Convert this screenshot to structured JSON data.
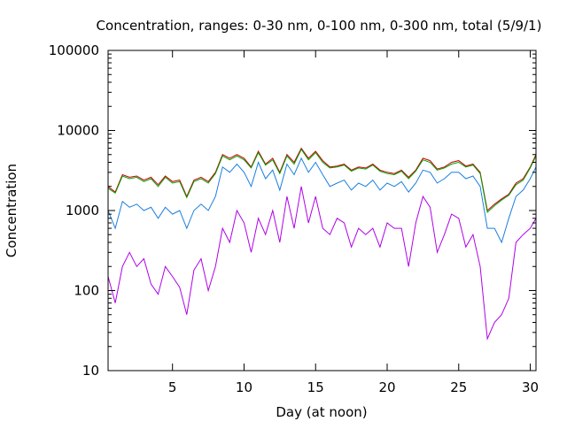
{
  "chart_data": {
    "type": "line",
    "title": "Concentration, ranges: 0-30 nm, 0-100 nm, 0-300 nm, total (5/9/1)",
    "xlabel": "Day (at noon)",
    "ylabel": "Concentration",
    "xlim": [
      0.5,
      30.4
    ],
    "ylim": [
      10,
      100000
    ],
    "yscale": "log",
    "grid": false,
    "legend": "none",
    "x_ticks": [
      5,
      10,
      15,
      20,
      25,
      30
    ],
    "x_tick_labels": [
      "5",
      "10",
      "15",
      "20",
      "25",
      "30"
    ],
    "y_ticks": [
      10,
      100,
      1000,
      10000,
      100000
    ],
    "y_tick_labels": [
      "10",
      "100",
      "1000",
      "10000",
      "100000"
    ],
    "series": [
      {
        "color": "#cc0000",
        "x": [
          0.5,
          1,
          1.5,
          2,
          2.5,
          3,
          3.5,
          4,
          4.5,
          5,
          5.5,
          6,
          6.5,
          7,
          7.5,
          8,
          8.5,
          9,
          9.5,
          10,
          10.5,
          11,
          11.5,
          12,
          12.5,
          13,
          13.5,
          14,
          14.5,
          15,
          15.5,
          16,
          16.5,
          17,
          17.5,
          18,
          18.5,
          19,
          19.5,
          20,
          20.5,
          21,
          21.5,
          22,
          22.5,
          23,
          23.5,
          24,
          24.5,
          25,
          25.5,
          26,
          26.5,
          27,
          27.5,
          28,
          28.5,
          29,
          29.5,
          30,
          30.4
        ],
        "y": [
          2000,
          1700,
          2800,
          2600,
          2700,
          2400,
          2600,
          2100,
          2700,
          2300,
          2400,
          1500,
          2400,
          2600,
          2300,
          3000,
          5000,
          4500,
          5000,
          4500,
          3500,
          5500,
          3800,
          4500,
          3000,
          5000,
          4000,
          6000,
          4500,
          5500,
          4200,
          3500,
          3600,
          3800,
          3200,
          3500,
          3400,
          3800,
          3200,
          3000,
          2900,
          3200,
          2600,
          3200,
          4500,
          4200,
          3300,
          3500,
          4000,
          4200,
          3600,
          3800,
          3000,
          1000,
          1200,
          1400,
          1600,
          2200,
          2500,
          3500,
          5000
        ]
      },
      {
        "color": "#00a000",
        "x": [
          0.5,
          1,
          1.5,
          2,
          2.5,
          3,
          3.5,
          4,
          4.5,
          5,
          5.5,
          6,
          6.5,
          7,
          7.5,
          8,
          8.5,
          9,
          9.5,
          10,
          10.5,
          11,
          11.5,
          12,
          12.5,
          13,
          13.5,
          14,
          14.5,
          15,
          15.5,
          16,
          16.5,
          17,
          17.5,
          18,
          18.5,
          19,
          19.5,
          20,
          20.5,
          21,
          21.5,
          22,
          22.5,
          23,
          23.5,
          24,
          24.5,
          25,
          25.5,
          26,
          26.5,
          27,
          27.5,
          28,
          28.5,
          29,
          29.5,
          30,
          30.4
        ],
        "y": [
          1900,
          1650,
          2700,
          2500,
          2600,
          2300,
          2500,
          2000,
          2600,
          2200,
          2300,
          1450,
          2300,
          2500,
          2200,
          2900,
          4800,
          4300,
          4800,
          4300,
          3400,
          5300,
          3700,
          4300,
          2900,
          4800,
          3800,
          5800,
          4300,
          5300,
          4000,
          3400,
          3500,
          3700,
          3100,
          3400,
          3300,
          3700,
          3100,
          2900,
          2800,
          3100,
          2500,
          3100,
          4300,
          4000,
          3200,
          3400,
          3800,
          4000,
          3500,
          3700,
          2900,
          950,
          1150,
          1350,
          1550,
          2100,
          2400,
          3400,
          4800
        ]
      },
      {
        "color": "#1a7fe0",
        "x": [
          0.5,
          1,
          1.5,
          2,
          2.5,
          3,
          3.5,
          4,
          4.5,
          5,
          5.5,
          6,
          6.5,
          7,
          7.5,
          8,
          8.5,
          9,
          9.5,
          10,
          10.5,
          11,
          11.5,
          12,
          12.5,
          13,
          13.5,
          14,
          14.5,
          15,
          15.5,
          16,
          16.5,
          17,
          17.5,
          18,
          18.5,
          19,
          19.5,
          20,
          20.5,
          21,
          21.5,
          22,
          22.5,
          23,
          23.5,
          24,
          24.5,
          25,
          25.5,
          26,
          26.5,
          27,
          27.5,
          28,
          28.5,
          29,
          29.5,
          30,
          30.4
        ],
        "y": [
          1000,
          600,
          1300,
          1100,
          1200,
          1000,
          1100,
          800,
          1100,
          900,
          1000,
          600,
          1000,
          1200,
          1000,
          1500,
          3500,
          3000,
          3800,
          3000,
          2000,
          4000,
          2500,
          3200,
          1800,
          3800,
          2800,
          4500,
          3000,
          4000,
          2800,
          2000,
          2200,
          2400,
          1800,
          2200,
          2000,
          2400,
          1800,
          2200,
          2000,
          2300,
          1700,
          2200,
          3200,
          3000,
          2200,
          2500,
          3000,
          3000,
          2500,
          2700,
          2000,
          600,
          600,
          400,
          800,
          1500,
          1800,
          2500,
          3500
        ]
      },
      {
        "color": "#b000e8",
        "x": [
          0.5,
          1,
          1.5,
          2,
          2.5,
          3,
          3.5,
          4,
          4.5,
          5,
          5.5,
          6,
          6.5,
          7,
          7.5,
          8,
          8.5,
          9,
          9.5,
          10,
          10.5,
          11,
          11.5,
          12,
          12.5,
          13,
          13.5,
          14,
          14.5,
          15,
          15.5,
          16,
          16.5,
          17,
          17.5,
          18,
          18.5,
          19,
          19.5,
          20,
          20.5,
          21,
          21.5,
          22,
          22.5,
          23,
          23.5,
          24,
          24.5,
          25,
          25.5,
          26,
          26.5,
          27,
          27.5,
          28,
          28.5,
          29,
          29.5,
          30,
          30.4
        ],
        "y": [
          150,
          70,
          200,
          300,
          200,
          250,
          120,
          90,
          200,
          150,
          110,
          50,
          180,
          250,
          100,
          200,
          600,
          400,
          1000,
          700,
          300,
          800,
          500,
          1000,
          400,
          1500,
          600,
          2000,
          700,
          1500,
          600,
          500,
          800,
          700,
          350,
          600,
          500,
          600,
          350,
          700,
          600,
          600,
          200,
          700,
          1500,
          1100,
          300,
          500,
          900,
          800,
          350,
          500,
          200,
          25,
          40,
          50,
          80,
          400,
          500,
          600,
          800
        ]
      }
    ]
  }
}
